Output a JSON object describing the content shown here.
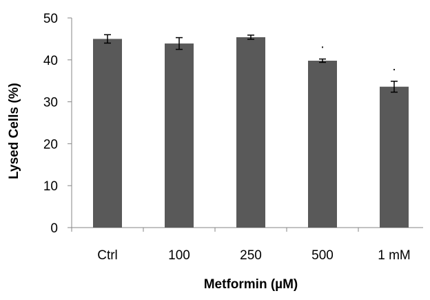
{
  "chart_data": {
    "type": "bar",
    "title": "",
    "xlabel": "Metformin (µM)",
    "ylabel": "Lysed Cells (%)",
    "categories": [
      "Ctrl",
      "100",
      "250",
      "500",
      "1 mM"
    ],
    "series": [
      {
        "values": [
          45.0,
          43.9,
          45.4,
          39.8,
          33.6
        ],
        "error": [
          1.0,
          1.4,
          0.5,
          0.4,
          1.3
        ],
        "color": "#595959"
      }
    ],
    "significance_markers": [
      "",
      "",
      "",
      ".",
      "."
    ],
    "ylim": [
      0,
      50
    ],
    "yticks": [
      0,
      10,
      20,
      30,
      40,
      50
    ],
    "grid": false,
    "legend": "none"
  }
}
